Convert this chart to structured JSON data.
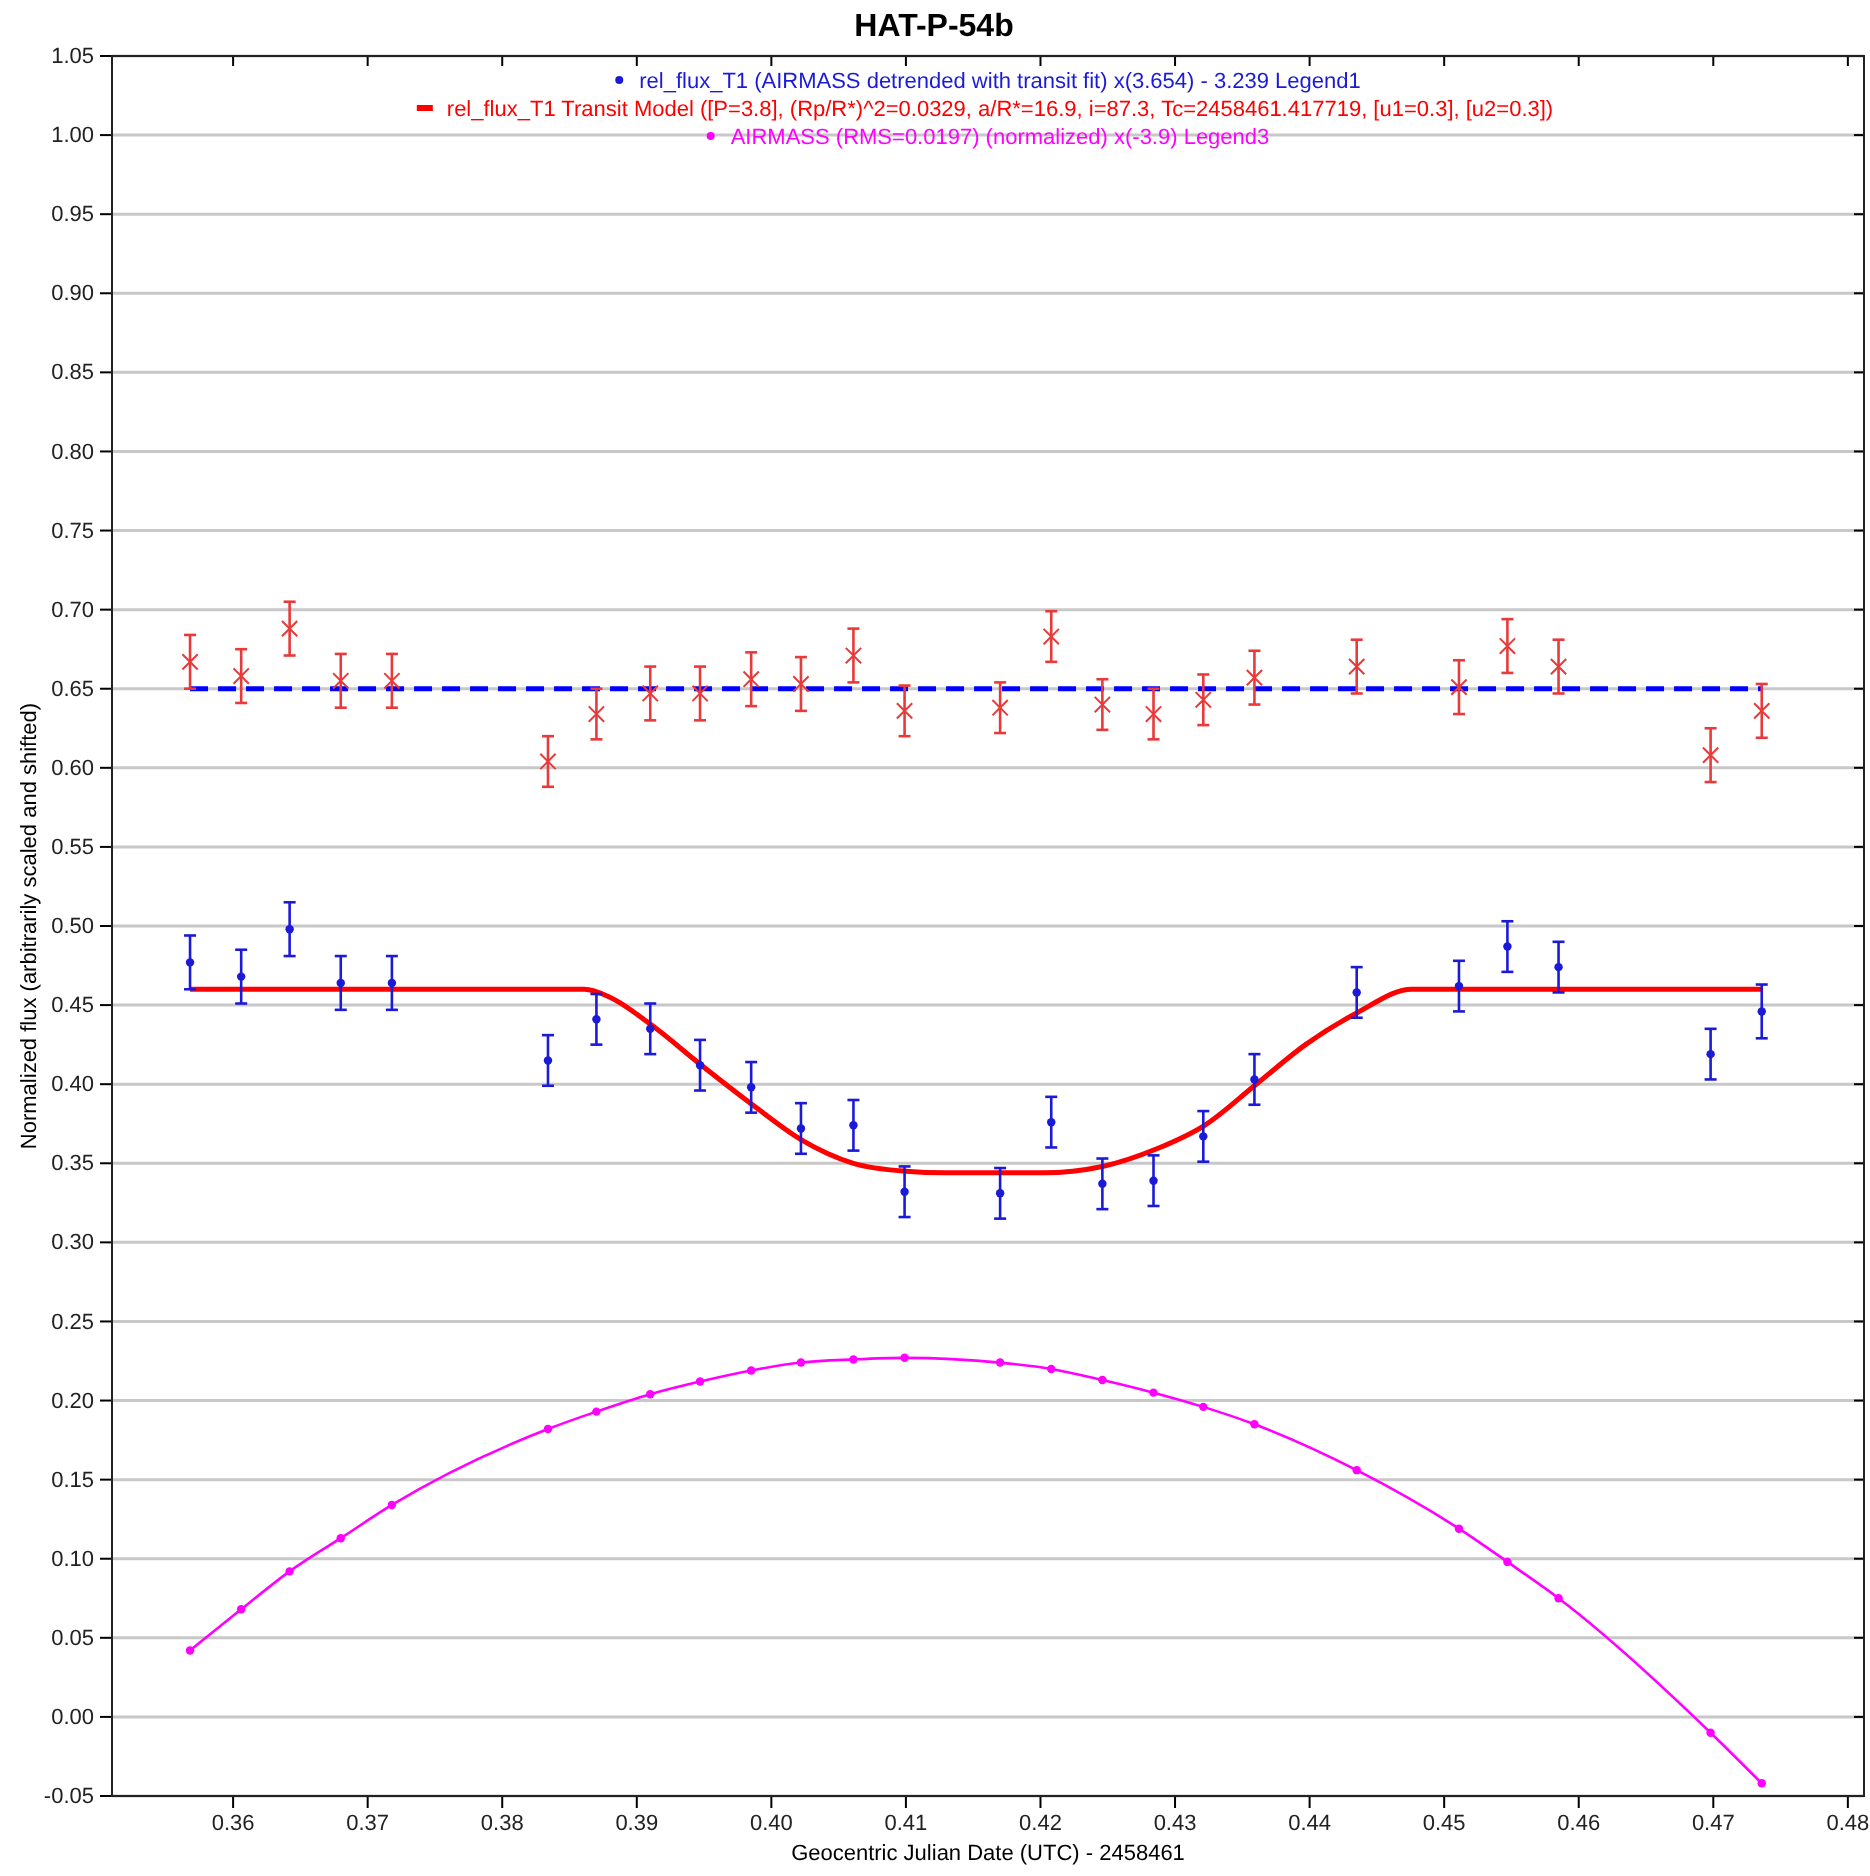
{
  "chart_data": {
    "type": "scatter",
    "title": "HAT-P-54b",
    "xlabel": "Geocentric Julian Date (UTC) - 2458461",
    "ylabel": "Normalized flux  (arbitrarily scaled and shifted)",
    "xlim": [
      0.351,
      0.4812
    ],
    "ylim": [
      -0.05,
      1.05
    ],
    "xticks": [
      {
        "value": 0.36,
        "label": "0.36"
      },
      {
        "value": 0.37,
        "label": "0.37"
      },
      {
        "value": 0.38,
        "label": "0.38"
      },
      {
        "value": 0.39,
        "label": "0.39"
      },
      {
        "value": 0.4,
        "label": "0.40"
      },
      {
        "value": 0.41,
        "label": "0.41"
      },
      {
        "value": 0.42,
        "label": "0.42"
      },
      {
        "value": 0.43,
        "label": "0.43"
      },
      {
        "value": 0.44,
        "label": "0.44"
      },
      {
        "value": 0.45,
        "label": "0.45"
      },
      {
        "value": 0.46,
        "label": "0.46"
      },
      {
        "value": 0.47,
        "label": "0.47"
      },
      {
        "value": 0.48,
        "label": "0.48"
      }
    ],
    "yticks": [
      {
        "value": -0.05,
        "label": "-0.05"
      },
      {
        "value": 0,
        "label": "0.00"
      },
      {
        "value": 0.05,
        "label": "0.05"
      },
      {
        "value": 0.1,
        "label": "0.10"
      },
      {
        "value": 0.15,
        "label": "0.15"
      },
      {
        "value": 0.2,
        "label": "0.20"
      },
      {
        "value": 0.25,
        "label": "0.25"
      },
      {
        "value": 0.3,
        "label": "0.30"
      },
      {
        "value": 0.35,
        "label": "0.35"
      },
      {
        "value": 0.4,
        "label": "0.40"
      },
      {
        "value": 0.45,
        "label": "0.45"
      },
      {
        "value": 0.5,
        "label": "0.50"
      },
      {
        "value": 0.55,
        "label": "0.55"
      },
      {
        "value": 0.6,
        "label": "0.60"
      },
      {
        "value": 0.65,
        "label": "0.65"
      },
      {
        "value": 0.7,
        "label": "0.70"
      },
      {
        "value": 0.75,
        "label": "0.75"
      },
      {
        "value": 0.8,
        "label": "0.80"
      },
      {
        "value": 0.85,
        "label": "0.85"
      },
      {
        "value": 0.9,
        "label": "0.90"
      },
      {
        "value": 0.95,
        "label": "0.95"
      },
      {
        "value": 1.0,
        "label": "1.00"
      },
      {
        "value": 1.05,
        "label": "1.05"
      }
    ],
    "grid": "y",
    "legend": "top",
    "series": [
      {
        "type": "line",
        "color": "#0000ff",
        "line_style": "dashed",
        "marker": "none",
        "x": [
          0.3568,
          0.4736
        ],
        "values": [
          0.65,
          0.65
        ]
      },
      {
        "color": "#e83a3a",
        "marker": "cross",
        "x": [
          0.3568,
          0.3606,
          0.3642,
          0.368,
          0.3718,
          0.3834,
          0.387,
          0.391,
          0.3947,
          0.3985,
          0.4022,
          0.4061,
          0.4099,
          0.417,
          0.4208,
          0.4246,
          0.4284,
          0.4321,
          0.4359,
          0.4435,
          0.4511,
          0.4547,
          0.4585,
          0.4698,
          0.4736
        ],
        "values": [
          0.667,
          0.658,
          0.688,
          0.655,
          0.655,
          0.604,
          0.634,
          0.647,
          0.647,
          0.656,
          0.653,
          0.671,
          0.636,
          0.638,
          0.683,
          0.64,
          0.634,
          0.643,
          0.657,
          0.664,
          0.651,
          0.677,
          0.664,
          0.608,
          0.636
        ],
        "errors": [
          0.017,
          0.017,
          0.017,
          0.017,
          0.017,
          0.016,
          0.016,
          0.017,
          0.017,
          0.017,
          0.017,
          0.017,
          0.016,
          0.016,
          0.016,
          0.016,
          0.016,
          0.016,
          0.017,
          0.017,
          0.017,
          0.017,
          0.017,
          0.017,
          0.017
        ]
      },
      {
        "name": "rel_flux_T1 (AIRMASS detrended with transit fit) x(3.654) - 3.239 Legend1",
        "color": "#1a1ad8",
        "marker": "circle",
        "x": [
          0.3568,
          0.3606,
          0.3642,
          0.368,
          0.3718,
          0.3834,
          0.387,
          0.391,
          0.3947,
          0.3985,
          0.4022,
          0.4061,
          0.4099,
          0.417,
          0.4208,
          0.4246,
          0.4284,
          0.4321,
          0.4359,
          0.4435,
          0.4511,
          0.4547,
          0.4585,
          0.4698,
          0.4736
        ],
        "values": [
          0.477,
          0.468,
          0.498,
          0.464,
          0.464,
          0.415,
          0.441,
          0.435,
          0.412,
          0.398,
          0.372,
          0.374,
          0.332,
          0.331,
          0.376,
          0.337,
          0.339,
          0.367,
          0.403,
          0.458,
          0.462,
          0.487,
          0.474,
          0.419,
          0.446
        ],
        "errors": [
          0.017,
          0.017,
          0.017,
          0.017,
          0.017,
          0.016,
          0.016,
          0.016,
          0.016,
          0.016,
          0.016,
          0.016,
          0.016,
          0.016,
          0.016,
          0.016,
          0.016,
          0.016,
          0.016,
          0.016,
          0.016,
          0.016,
          0.016,
          0.016,
          0.017
        ]
      },
      {
        "type": "line",
        "name": "rel_flux_T1 Transit Model ([P=3.8], (Rp/R*)^2=0.0329, a/R*=16.9, i=87.3, Tc=2458461.417719, [u1=0.3], [u2=0.3])",
        "color": "#ff0000",
        "line_style": "solid",
        "marker": "none",
        "x": [
          0.3568,
          0.3861,
          0.388,
          0.391,
          0.3948,
          0.3986,
          0.4022,
          0.4061,
          0.41,
          0.4129,
          0.4202,
          0.4246,
          0.4286,
          0.4322,
          0.4359,
          0.4397,
          0.4435,
          0.4476,
          0.4736
        ],
        "values": [
          0.46,
          0.46,
          0.455,
          0.438,
          0.412,
          0.387,
          0.365,
          0.35,
          0.345,
          0.344,
          0.344,
          0.348,
          0.359,
          0.374,
          0.399,
          0.425,
          0.445,
          0.46,
          0.46
        ]
      },
      {
        "type": "line",
        "name": "AIRMASS (RMS=0.0197) (normalized) x(-3.9) Legend3",
        "color": "#ff00ff",
        "line_style": "solid",
        "marker": "circle",
        "x": [
          0.3568,
          0.3606,
          0.3642,
          0.368,
          0.3718,
          0.3834,
          0.387,
          0.391,
          0.3947,
          0.3985,
          0.4022,
          0.4061,
          0.4099,
          0.417,
          0.4208,
          0.4246,
          0.4284,
          0.4321,
          0.4359,
          0.4435,
          0.4511,
          0.4547,
          0.4585,
          0.4698,
          0.4736
        ],
        "values": [
          0.042,
          0.068,
          0.092,
          0.113,
          0.134,
          0.182,
          0.193,
          0.204,
          0.212,
          0.219,
          0.224,
          0.226,
          0.227,
          0.224,
          0.22,
          0.213,
          0.205,
          0.196,
          0.185,
          0.156,
          0.119,
          0.098,
          0.075,
          -0.01,
          -0.042
        ]
      }
    ]
  }
}
